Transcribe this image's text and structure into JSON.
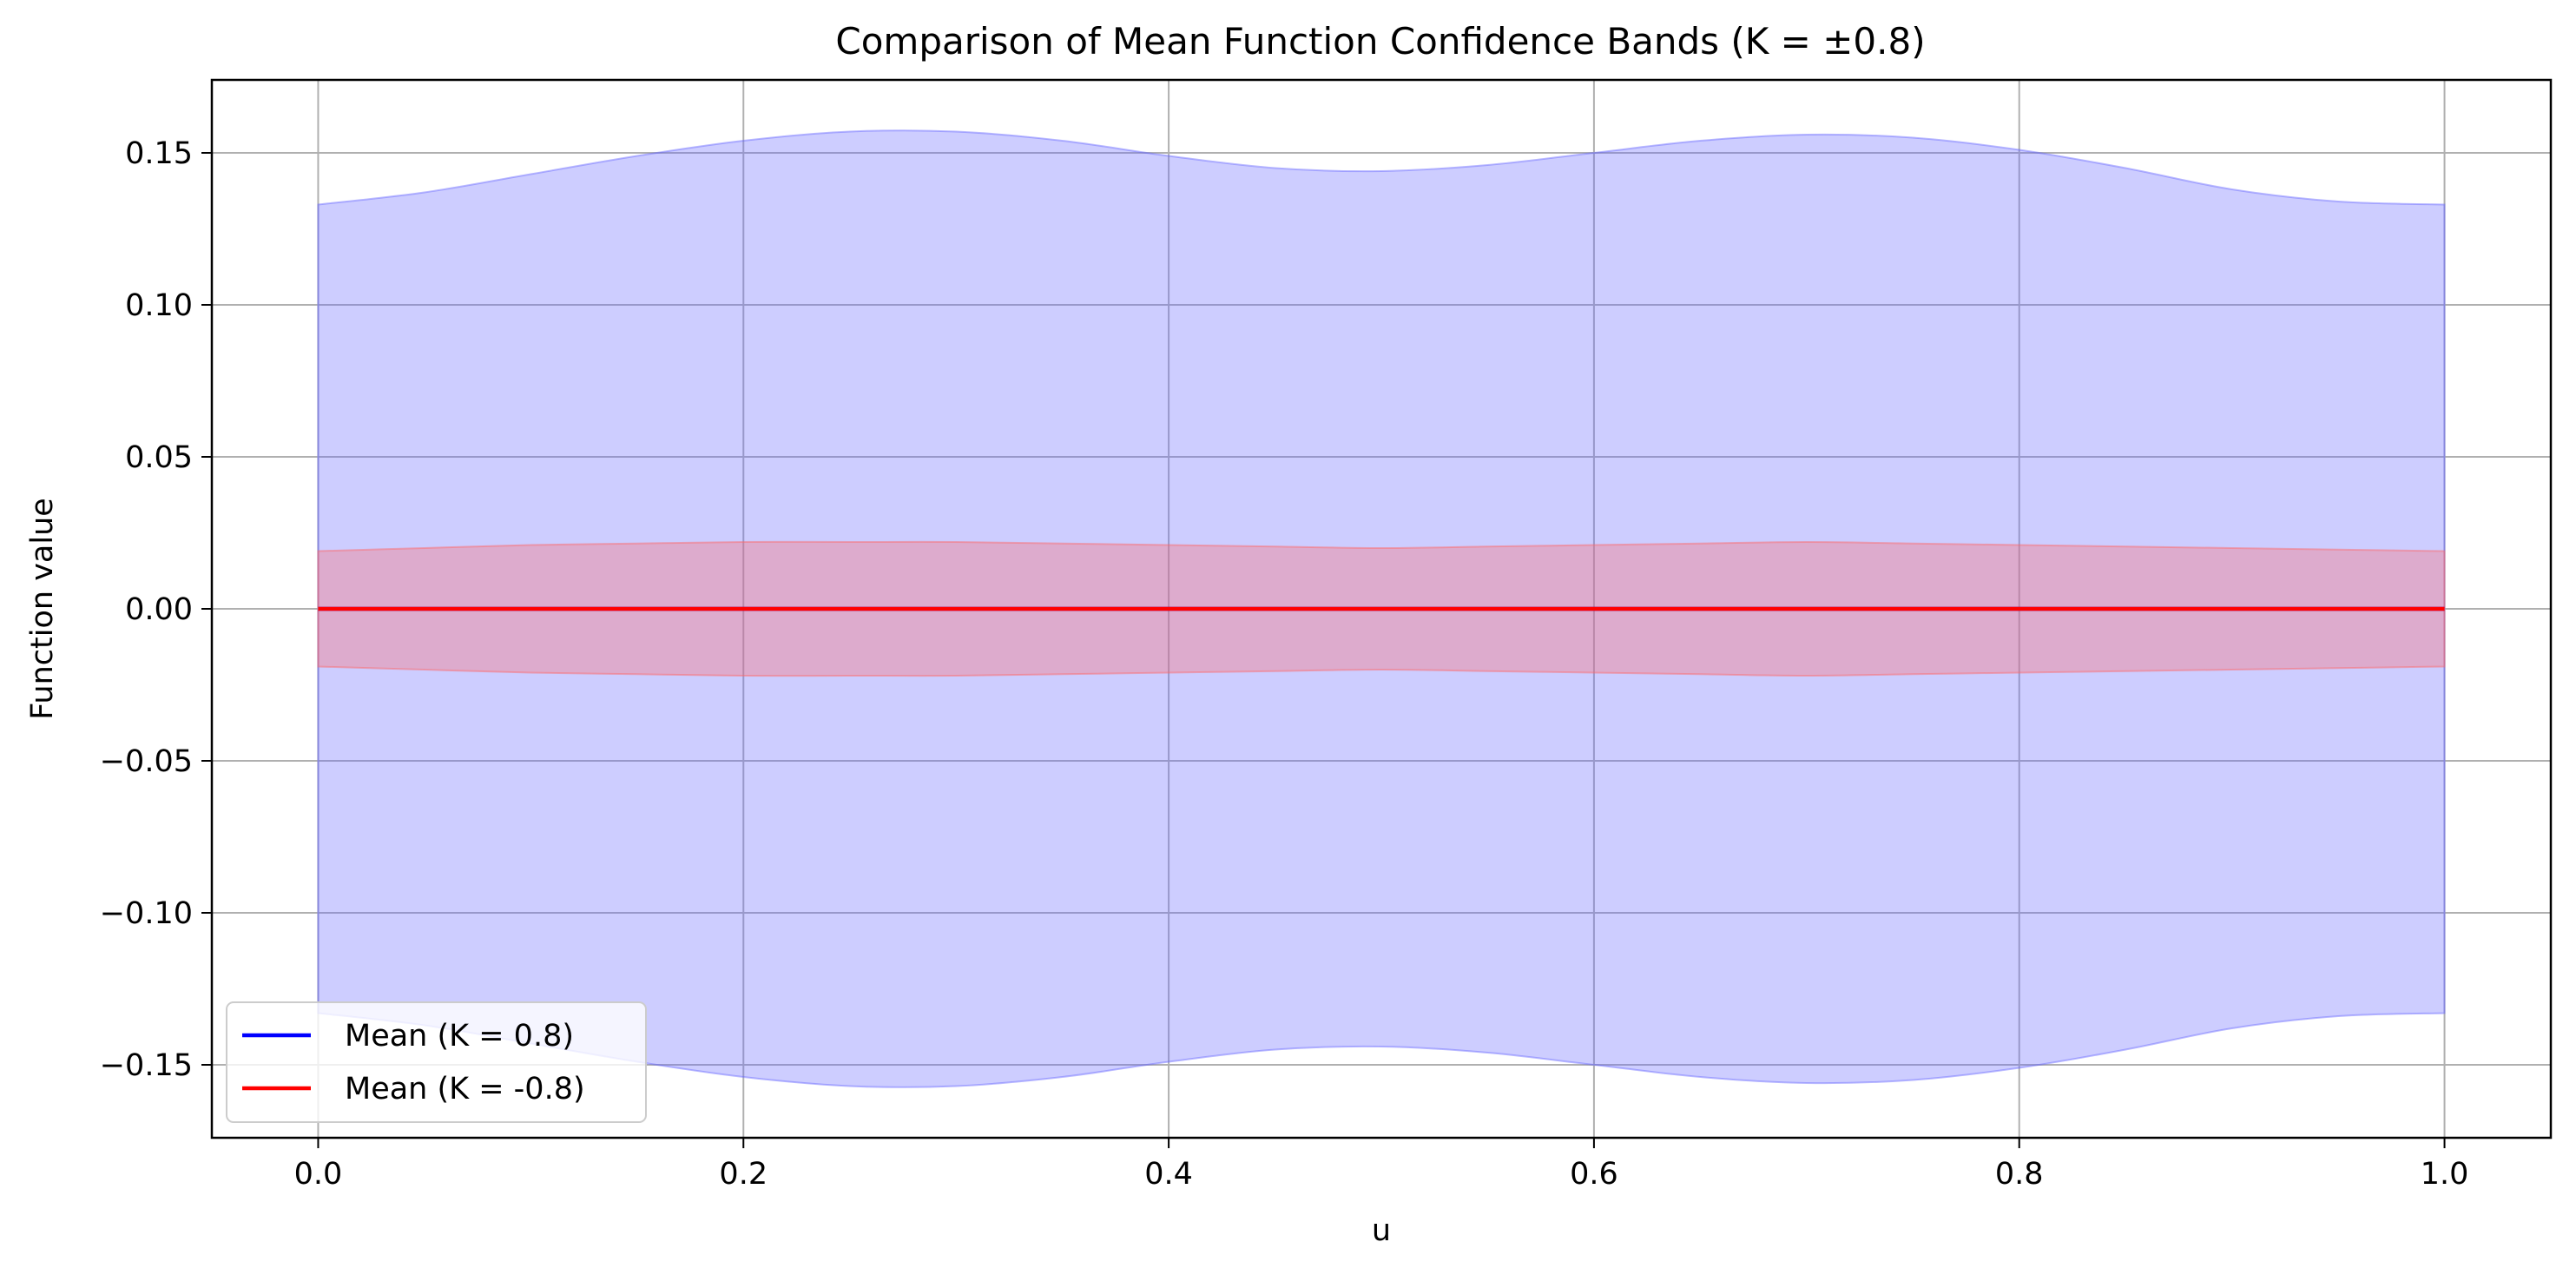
{
  "chart_data": {
    "type": "area",
    "title": "Comparison of Mean Function Confidence Bands (K = ±0.8)",
    "xlabel": "u",
    "ylabel": "Function value",
    "xlim": [
      -0.05,
      1.05
    ],
    "ylim": [
      -0.174,
      0.174
    ],
    "xticks": [
      0.0,
      0.2,
      0.4,
      0.6,
      0.8,
      1.0
    ],
    "xtick_labels": [
      "0.0",
      "0.2",
      "0.4",
      "0.6",
      "0.8",
      "1.0"
    ],
    "yticks": [
      -0.15,
      -0.1,
      -0.05,
      0.0,
      0.05,
      0.1,
      0.15
    ],
    "ytick_labels": [
      "−0.15",
      "−0.10",
      "−0.05",
      "0.00",
      "0.05",
      "0.10",
      "0.15"
    ],
    "grid": true,
    "legend_position": "lower-left",
    "x": [
      0.0,
      0.05,
      0.1,
      0.15,
      0.2,
      0.25,
      0.3,
      0.35,
      0.4,
      0.45,
      0.5,
      0.55,
      0.6,
      0.65,
      0.7,
      0.75,
      0.8,
      0.85,
      0.9,
      0.95,
      1.0
    ],
    "series": [
      {
        "name": "Mean (K = 0.8)",
        "color": "#0000ff",
        "band_color": "#6666ff",
        "mean": [
          0,
          0,
          0,
          0,
          0,
          0,
          0,
          0,
          0,
          0,
          0,
          0,
          0,
          0,
          0,
          0,
          0,
          0,
          0,
          0,
          0
        ],
        "upper": [
          0.133,
          0.137,
          0.143,
          0.149,
          0.154,
          0.157,
          0.157,
          0.154,
          0.149,
          0.145,
          0.144,
          0.146,
          0.15,
          0.154,
          0.156,
          0.155,
          0.151,
          0.145,
          0.138,
          0.134,
          0.133
        ],
        "lower": [
          -0.133,
          -0.137,
          -0.143,
          -0.149,
          -0.154,
          -0.157,
          -0.157,
          -0.154,
          -0.149,
          -0.145,
          -0.144,
          -0.146,
          -0.15,
          -0.154,
          -0.156,
          -0.155,
          -0.151,
          -0.145,
          -0.138,
          -0.134,
          -0.133
        ]
      },
      {
        "name": "Mean (K = -0.8)",
        "color": "#ff0000",
        "band_color": "#ff6666",
        "mean": [
          0,
          0,
          0,
          0,
          0,
          0,
          0,
          0,
          0,
          0,
          0,
          0,
          0,
          0,
          0,
          0,
          0,
          0,
          0,
          0,
          0
        ],
        "upper": [
          0.019,
          0.02,
          0.021,
          0.0215,
          0.022,
          0.022,
          0.022,
          0.0215,
          0.021,
          0.0205,
          0.02,
          0.0205,
          0.021,
          0.0215,
          0.022,
          0.0215,
          0.021,
          0.0205,
          0.02,
          0.0195,
          0.019
        ],
        "lower": [
          -0.019,
          -0.02,
          -0.021,
          -0.0215,
          -0.022,
          -0.022,
          -0.022,
          -0.0215,
          -0.021,
          -0.0205,
          -0.02,
          -0.0205,
          -0.021,
          -0.0215,
          -0.022,
          -0.0215,
          -0.021,
          -0.0205,
          -0.02,
          -0.0195,
          -0.019
        ]
      }
    ]
  }
}
